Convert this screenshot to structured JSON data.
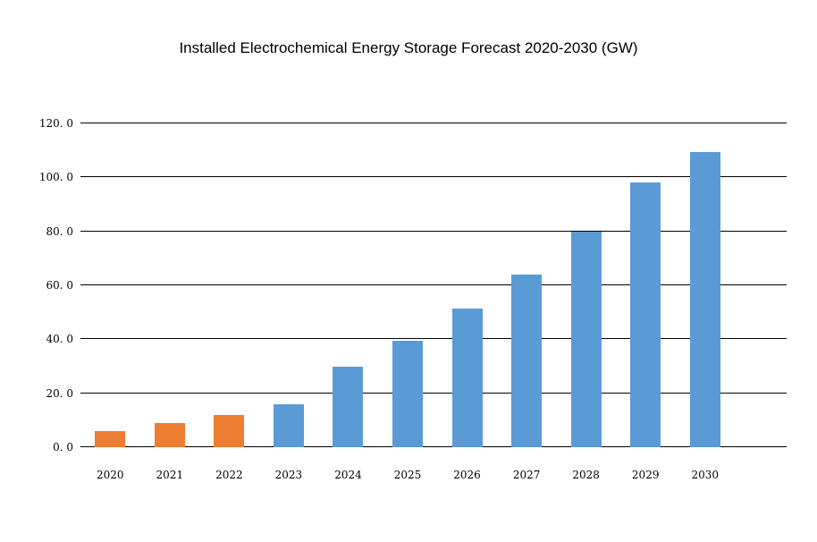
{
  "chart_data": {
    "type": "bar",
    "title": "Installed Electrochemical Energy Storage Forecast 2020-2030 (GW)",
    "xlabel": "",
    "ylabel": "",
    "categories": [
      "2020",
      "2021",
      "2022",
      "2023",
      "2024",
      "2025",
      "2026",
      "2027",
      "2028",
      "2029",
      "2030"
    ],
    "values": [
      6,
      9,
      12,
      16,
      30,
      39.5,
      51.5,
      64,
      80,
      98,
      109.5
    ],
    "bar_colors": [
      "#ED7D31",
      "#ED7D31",
      "#ED7D31",
      "#5B9BD5",
      "#5B9BD5",
      "#5B9BD5",
      "#5B9BD5",
      "#5B9BD5",
      "#5B9BD5",
      "#5B9BD5",
      "#5B9BD5"
    ],
    "ylim": [
      0,
      120
    ],
    "yticks": [
      {
        "value": 0,
        "label": "0. 0"
      },
      {
        "value": 20,
        "label": "20. 0"
      },
      {
        "value": 40,
        "label": "40. 0"
      },
      {
        "value": 60,
        "label": "60. 0"
      },
      {
        "value": 80,
        "label": "80. 0"
      },
      {
        "value": 100,
        "label": "100. 0"
      },
      {
        "value": 120,
        "label": "120. 0"
      }
    ],
    "grid": true,
    "legend": "none"
  },
  "colors": {
    "orange": "#ED7D31",
    "blue": "#5B9BD5",
    "grid": "#000000",
    "background": "#FFFFFF"
  }
}
